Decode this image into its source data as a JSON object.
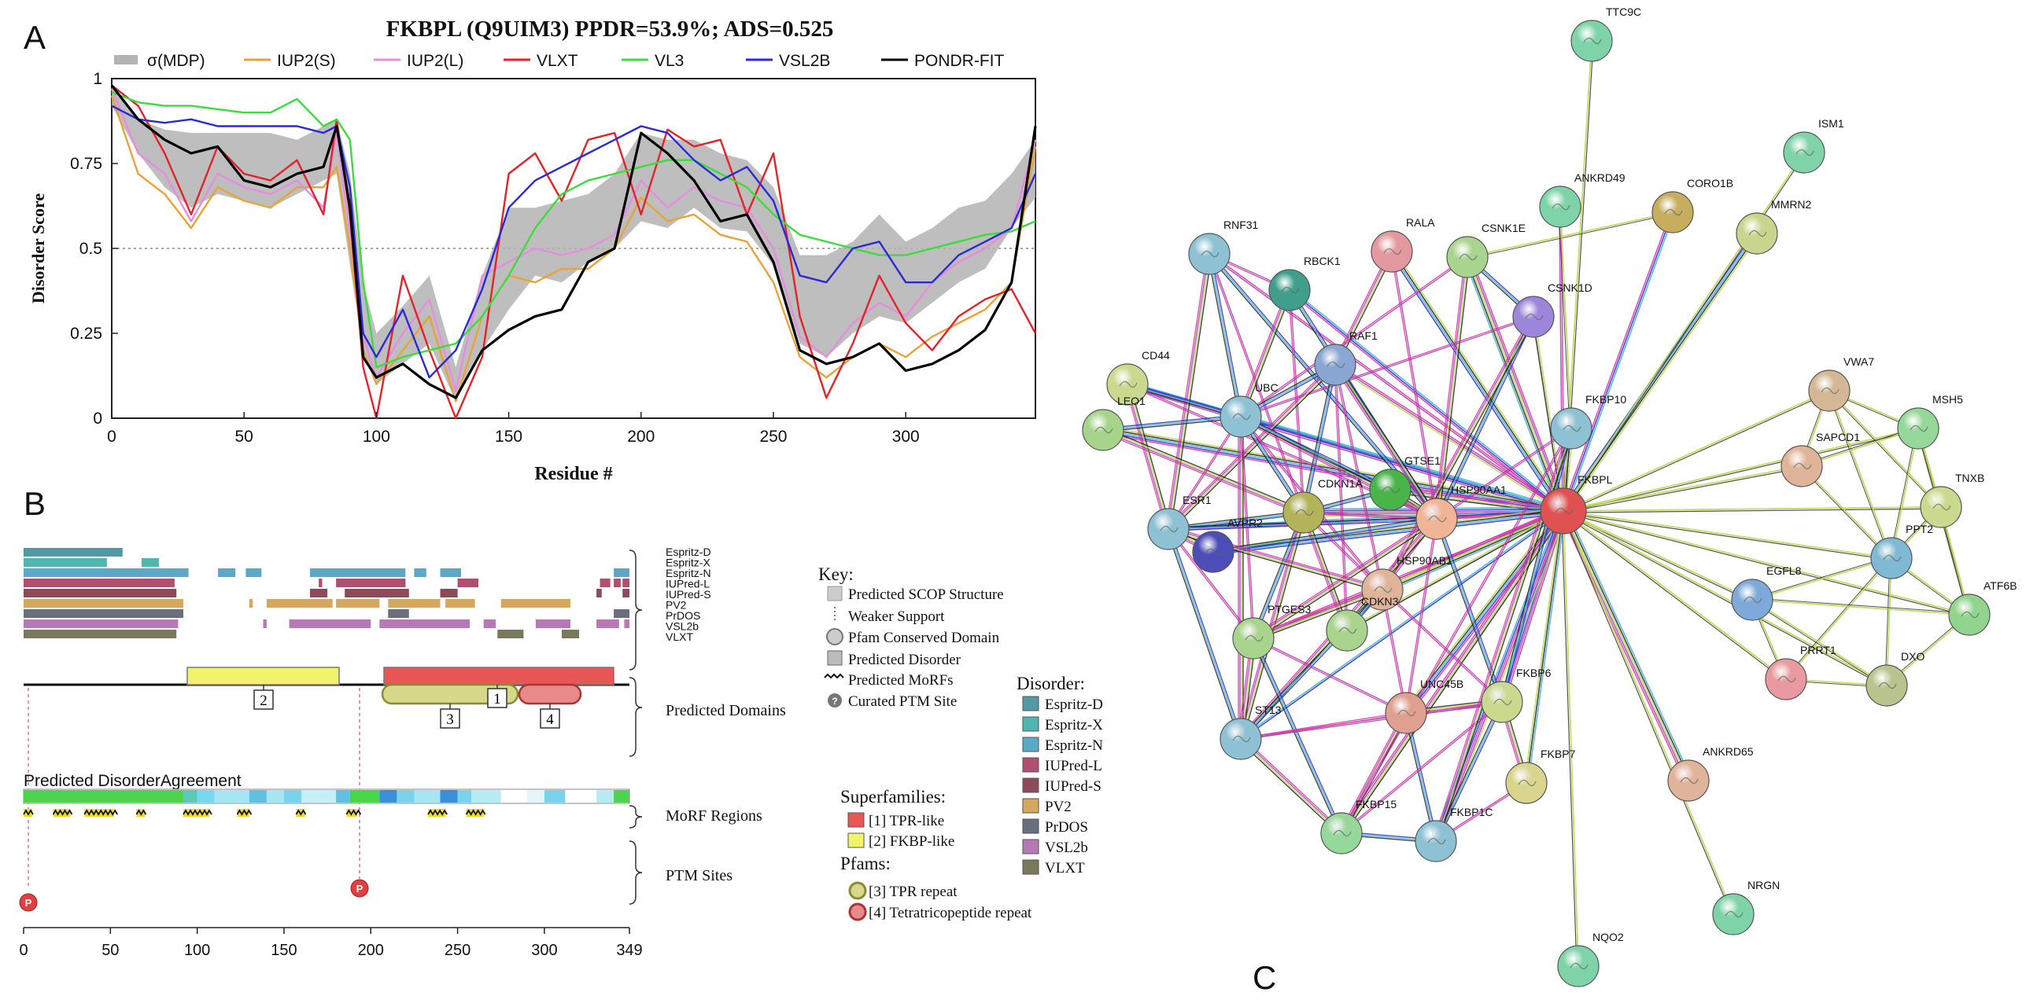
{
  "panel_letters": {
    "a": "A",
    "b": "B",
    "c": "C"
  },
  "panelA": {
    "title": "FKBPL (Q9UIM3) PPDR=53.9%; ADS=0.525",
    "legend": [
      {
        "name": "σ(MDP)",
        "color": "#b3b3b3"
      },
      {
        "name": "IUP2(S)",
        "color": "#e8a33a"
      },
      {
        "name": "IUP2(L)",
        "color": "#e68de0"
      },
      {
        "name": "VLXT",
        "color": "#e2232a"
      },
      {
        "name": "VL3",
        "color": "#3ddc3d"
      },
      {
        "name": "VSL2B",
        "color": "#2a2ad6"
      },
      {
        "name": "PONDR-FIT",
        "color": "#000000"
      }
    ],
    "xlabel": "Residue #",
    "ylabel": "Disorder Score",
    "xticks": [
      "0",
      "50",
      "100",
      "150",
      "200",
      "250",
      "300"
    ],
    "yticks": [
      "0",
      "0.25",
      "0.5",
      "0.75",
      "1"
    ]
  },
  "chart_data": {
    "type": "line",
    "title": "FKBPL (Q9UIM3) PPDR=53.9%; ADS=0.525",
    "xlabel": "Residue #",
    "ylabel": "Disorder Score",
    "xlim": [
      0,
      349
    ],
    "ylim": [
      0,
      1
    ],
    "threshold": 0.5,
    "x": [
      0,
      10,
      20,
      30,
      40,
      50,
      60,
      70,
      80,
      85,
      90,
      95,
      100,
      110,
      120,
      130,
      140,
      150,
      160,
      170,
      180,
      190,
      200,
      210,
      220,
      230,
      240,
      250,
      260,
      270,
      280,
      290,
      300,
      310,
      320,
      330,
      340,
      349
    ],
    "series": [
      {
        "name": "σ(MDP)",
        "lower": [
          0.92,
          0.78,
          0.68,
          0.62,
          0.66,
          0.64,
          0.62,
          0.66,
          0.7,
          0.72,
          0.45,
          0.2,
          0.1,
          0.16,
          0.22,
          0.05,
          0.2,
          0.32,
          0.42,
          0.4,
          0.46,
          0.5,
          0.58,
          0.56,
          0.62,
          0.56,
          0.55,
          0.45,
          0.22,
          0.18,
          0.25,
          0.3,
          0.28,
          0.34,
          0.4,
          0.44,
          0.56,
          0.65
        ],
        "upper": [
          0.98,
          0.88,
          0.85,
          0.84,
          0.84,
          0.84,
          0.84,
          0.82,
          0.86,
          0.88,
          0.72,
          0.4,
          0.25,
          0.33,
          0.42,
          0.15,
          0.42,
          0.62,
          0.62,
          0.64,
          0.66,
          0.72,
          0.84,
          0.82,
          0.82,
          0.78,
          0.76,
          0.68,
          0.48,
          0.48,
          0.52,
          0.6,
          0.52,
          0.56,
          0.62,
          0.64,
          0.72,
          0.82
        ]
      },
      {
        "name": "IUP2(S)",
        "values": [
          0.95,
          0.72,
          0.66,
          0.56,
          0.68,
          0.64,
          0.62,
          0.68,
          0.68,
          0.74,
          0.5,
          0.2,
          0.1,
          0.2,
          0.3,
          0.05,
          0.3,
          0.42,
          0.4,
          0.44,
          0.44,
          0.5,
          0.65,
          0.58,
          0.6,
          0.54,
          0.52,
          0.4,
          0.18,
          0.12,
          0.18,
          0.22,
          0.18,
          0.24,
          0.28,
          0.32,
          0.4,
          0.8
        ]
      },
      {
        "name": "IUP2(L)",
        "values": [
          0.97,
          0.78,
          0.72,
          0.58,
          0.72,
          0.68,
          0.66,
          0.7,
          0.62,
          0.84,
          0.55,
          0.24,
          0.12,
          0.25,
          0.35,
          0.08,
          0.42,
          0.46,
          0.5,
          0.48,
          0.5,
          0.54,
          0.7,
          0.62,
          0.68,
          0.64,
          0.62,
          0.5,
          0.24,
          0.18,
          0.28,
          0.34,
          0.3,
          0.4,
          0.46,
          0.5,
          0.56,
          0.82
        ]
      },
      {
        "name": "VLXT",
        "values": [
          0.98,
          0.92,
          0.78,
          0.6,
          0.8,
          0.72,
          0.7,
          0.76,
          0.6,
          0.88,
          0.6,
          0.15,
          0.0,
          0.42,
          0.2,
          0.0,
          0.18,
          0.72,
          0.78,
          0.64,
          0.82,
          0.84,
          0.6,
          0.85,
          0.8,
          0.82,
          0.6,
          0.78,
          0.3,
          0.06,
          0.22,
          0.42,
          0.28,
          0.2,
          0.3,
          0.35,
          0.38,
          0.25
        ]
      },
      {
        "name": "VL3",
        "values": [
          0.96,
          0.93,
          0.92,
          0.92,
          0.91,
          0.9,
          0.9,
          0.94,
          0.86,
          0.88,
          0.82,
          0.4,
          0.15,
          0.18,
          0.2,
          0.22,
          0.3,
          0.42,
          0.56,
          0.66,
          0.7,
          0.72,
          0.74,
          0.76,
          0.76,
          0.72,
          0.68,
          0.6,
          0.54,
          0.52,
          0.5,
          0.48,
          0.48,
          0.5,
          0.52,
          0.54,
          0.55,
          0.58
        ]
      },
      {
        "name": "VSL2B",
        "values": [
          0.92,
          0.88,
          0.87,
          0.88,
          0.86,
          0.86,
          0.86,
          0.86,
          0.84,
          0.86,
          0.68,
          0.25,
          0.18,
          0.32,
          0.12,
          0.2,
          0.38,
          0.62,
          0.7,
          0.74,
          0.78,
          0.82,
          0.86,
          0.84,
          0.76,
          0.7,
          0.74,
          0.64,
          0.42,
          0.4,
          0.5,
          0.52,
          0.4,
          0.4,
          0.48,
          0.52,
          0.56,
          0.72
        ]
      },
      {
        "name": "PONDR-FIT",
        "values": [
          0.98,
          0.88,
          0.82,
          0.78,
          0.8,
          0.7,
          0.68,
          0.72,
          0.74,
          0.86,
          0.62,
          0.18,
          0.12,
          0.16,
          0.1,
          0.06,
          0.2,
          0.26,
          0.3,
          0.32,
          0.46,
          0.5,
          0.84,
          0.78,
          0.7,
          0.58,
          0.6,
          0.46,
          0.2,
          0.16,
          0.18,
          0.22,
          0.14,
          0.16,
          0.2,
          0.26,
          0.4,
          0.86
        ]
      }
    ]
  },
  "panelB": {
    "predictor_labels": [
      "Espritz-D",
      "Espritz-X",
      "Espritz-N",
      "IUPred-L",
      "IUPred-S",
      "PV2",
      "PrDOS",
      "VSL2b",
      "VLXT"
    ],
    "predictor_colors": [
      "#4f9aa5",
      "#52b6b0",
      "#5aa9c8",
      "#b05070",
      "#8d4a59",
      "#d4a860",
      "#6a6f80",
      "#b57ab5",
      "#79795c"
    ],
    "domain_bar_1": "1",
    "domain_bar_2": "2",
    "domain_bar_3": "3",
    "domain_bar_4": "4",
    "predicted_domains_label": "Predicted Domains",
    "agreement_label": "Predicted DisorderAgreement",
    "morf_label": "MoRF Regions",
    "ptm_label": "PTM Sites",
    "ptm_marker": "P",
    "xticks": [
      "0",
      "50",
      "100",
      "150",
      "200",
      "250",
      "300",
      "349"
    ],
    "key": {
      "title": "Key:",
      "items": [
        "Predicted SCOP Structure",
        "Weaker Support",
        "Pfam Conserved Domain",
        "Predicted Disorder",
        "Predicted MoRFs",
        "Curated PTM Site"
      ],
      "ptm_glyph": "?"
    },
    "disorder_legend": {
      "title": "Disorder:",
      "items": [
        {
          "name": "Espritz-D",
          "color": "#4f9aa5"
        },
        {
          "name": "Espritz-X",
          "color": "#52b6b0"
        },
        {
          "name": "Espritz-N",
          "color": "#5aa9c8"
        },
        {
          "name": "IUPred-L",
          "color": "#b05070"
        },
        {
          "name": "IUPred-S",
          "color": "#8d4a59"
        },
        {
          "name": "PV2",
          "color": "#d4a860"
        },
        {
          "name": "PrDOS",
          "color": "#6a6f80"
        },
        {
          "name": "VSL2b",
          "color": "#b57ab5"
        },
        {
          "name": "VLXT",
          "color": "#79795c"
        }
      ]
    },
    "superfamilies": {
      "title": "Superfamilies:",
      "items": [
        {
          "name": "[1] TPR-like",
          "color": "#e85656"
        },
        {
          "name": "[2] FKBP-like",
          "color": "#f3f36a"
        }
      ]
    },
    "pfams": {
      "title": "Pfams:",
      "items": [
        {
          "name": "[3] TPR repeat",
          "color": "#d8d88a"
        },
        {
          "name": "[4] Tetratricopeptide repeat",
          "color": "#e98a8a"
        }
      ]
    }
  },
  "panelC": {
    "nodes": [
      {
        "id": "TTC9C",
        "color": "#7fd3a9"
      },
      {
        "id": "ISM1",
        "color": "#7fd3a9"
      },
      {
        "id": "ANKRD49",
        "color": "#7fd3a9"
      },
      {
        "id": "CORO1B",
        "color": "#c7ad5e"
      },
      {
        "id": "MMRN2",
        "color": "#c9d48e"
      },
      {
        "id": "RNF31",
        "color": "#8fc1d4"
      },
      {
        "id": "RBCK1",
        "color": "#3f9f8a"
      },
      {
        "id": "RALA",
        "color": "#e29aa0"
      },
      {
        "id": "CSNK1E",
        "color": "#a9d48e"
      },
      {
        "id": "CSNK1D",
        "color": "#9c86db"
      },
      {
        "id": "RAF1",
        "color": "#8aa6d2"
      },
      {
        "id": "CD44",
        "color": "#c9d98e"
      },
      {
        "id": "LEO1",
        "color": "#a5d48a"
      },
      {
        "id": "UBC",
        "color": "#8fc1d4"
      },
      {
        "id": "FKBP10",
        "color": "#8fc1d4"
      },
      {
        "id": "VWA7",
        "color": "#d4b896"
      },
      {
        "id": "MSH5",
        "color": "#96d79a"
      },
      {
        "id": "SAPCD1",
        "color": "#e0b49a"
      },
      {
        "id": "TNXB",
        "color": "#c9d98e"
      },
      {
        "id": "GTSE1",
        "color": "#49b549"
      },
      {
        "id": "CDKN1A",
        "color": "#b3b35a"
      },
      {
        "id": "HSP90AA1",
        "color": "#f0b497"
      },
      {
        "id": "FKBPL",
        "color": "#e05252"
      },
      {
        "id": "ESR1",
        "color": "#8fc1d4"
      },
      {
        "id": "AVPR2",
        "color": "#4d4db8"
      },
      {
        "id": "HSP90AB1",
        "color": "#e0b49a"
      },
      {
        "id": "PPT2",
        "color": "#7fb9d4"
      },
      {
        "id": "EGFL8",
        "color": "#7fa9d9"
      },
      {
        "id": "ATF6B",
        "color": "#90d48e"
      },
      {
        "id": "CDKN3",
        "color": "#a9d48e"
      },
      {
        "id": "PTGES3",
        "color": "#a9d48e"
      },
      {
        "id": "PRRT1",
        "color": "#e89aa0"
      },
      {
        "id": "DXO",
        "color": "#b7c48e"
      },
      {
        "id": "FKBP6",
        "color": "#c9d98e"
      },
      {
        "id": "UNC45B",
        "color": "#e0a090"
      },
      {
        "id": "ST13",
        "color": "#8fc1d4"
      },
      {
        "id": "FKBP7",
        "color": "#d9d48e"
      },
      {
        "id": "ANKRD65",
        "color": "#e0b49a"
      },
      {
        "id": "FKBP15",
        "color": "#96d79a"
      },
      {
        "id": "FKBP1C",
        "color": "#8fc1d4"
      },
      {
        "id": "NRGN",
        "color": "#7fd3a9"
      },
      {
        "id": "NQO2",
        "color": "#7fd3a9"
      }
    ]
  }
}
